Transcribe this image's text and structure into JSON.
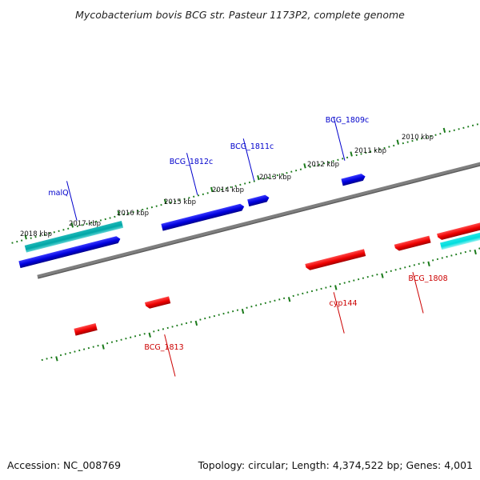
{
  "title": "Mycobacterium bovis BCG str. Pasteur 1173P2, complete genome",
  "footer": {
    "accession": "Accession: NC_008769",
    "topology": "Topology: circular; Length: 4,374,522 bp; Genes: 4,001"
  },
  "colors": {
    "backbone": "#7f7f7f",
    "forward_cds": "#0000dd",
    "reverse_cds": "#ee0000",
    "forward_rna": "#00aaaa",
    "reverse_rna": "#00dddd",
    "tick": "#1a7a1a",
    "forward_label": "#0000cc",
    "reverse_label": "#cc0000"
  },
  "kbp_labels": [
    "2018 kbp",
    "2017 kbp",
    "2016 kbp",
    "2015 kbp",
    "2014 kbp",
    "2013 kbp",
    "2012 kbp",
    "2011 kbp",
    "2010 kbp"
  ],
  "forward_gene_labels": [
    "malQ",
    "BCG_1812c",
    "BCG_1811c",
    "BCG_1809c"
  ],
  "reverse_gene_labels": [
    "BCG_1813",
    "cyp144",
    "BCG_1808"
  ]
}
